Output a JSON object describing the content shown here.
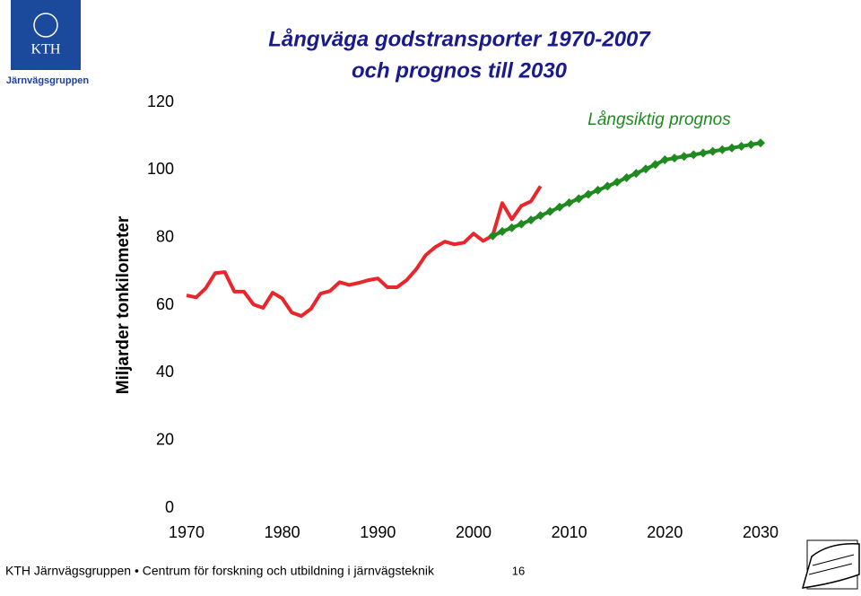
{
  "header": {
    "logo": "KTH",
    "org": "Järnvägsgruppen"
  },
  "chart_data": {
    "type": "line",
    "title_lines": [
      "Långväga godstransporter  1970-2007",
      "och prognos till 2030"
    ],
    "y_label": "Miljarder tonkilometer",
    "annotation": "Långsiktig prognos",
    "xlim": [
      1970,
      2030
    ],
    "xticks": [
      1970,
      1980,
      1990,
      2000,
      2010,
      2020,
      2030
    ],
    "ylim": [
      0,
      120
    ],
    "yticks": [
      0,
      20,
      40,
      60,
      80,
      100,
      120
    ],
    "grid": false,
    "series": [
      {
        "color": "#e8262b",
        "marker": "none",
        "x": [
          1970,
          1971,
          1972,
          1973,
          1974,
          1975,
          1976,
          1977,
          1978,
          1979,
          1980,
          1981,
          1982,
          1983,
          1984,
          1985,
          1986,
          1987,
          1988,
          1989,
          1990,
          1991,
          1992,
          1993,
          1994,
          1995,
          1996,
          1997,
          1998,
          1999,
          2000,
          2001,
          2002,
          2003,
          2004,
          2005,
          2006,
          2007
        ],
        "values": [
          62.9,
          62.3,
          65,
          69.5,
          69.8,
          64,
          64,
          60.2,
          59.2,
          63.7,
          62,
          57.8,
          56.8,
          58.9,
          63.4,
          64.2,
          66.8,
          66,
          66.6,
          67.4,
          67.9,
          65.3,
          65.3,
          67.4,
          70.6,
          74.8,
          77.2,
          78.8,
          78,
          78.5,
          81.2,
          79,
          80.6,
          90.2,
          85.4,
          89.4,
          90.7,
          95.2
        ]
      },
      {
        "color": "#1f8a1f",
        "marker": "diamond",
        "x": [
          2002,
          2003,
          2004,
          2005,
          2006,
          2007,
          2008,
          2009,
          2010,
          2011,
          2012,
          2013,
          2014,
          2015,
          2016,
          2017,
          2018,
          2019,
          2020,
          2021,
          2022,
          2023,
          2024,
          2025,
          2026,
          2027,
          2028,
          2029,
          2030
        ],
        "values": [
          80.5,
          81.8,
          82.9,
          84,
          85.2,
          86.5,
          87.7,
          89,
          90.3,
          91.5,
          92.8,
          94,
          95.2,
          96.4,
          97.7,
          99,
          100.3,
          101.6,
          103,
          103.5,
          104,
          104.5,
          105,
          105.5,
          106,
          106.5,
          107,
          107.5,
          108
        ]
      }
    ]
  },
  "footer": {
    "text": "KTH Järnvägsgruppen • Centrum för forskning och utbildning i järnvägsteknik",
    "page": 16
  }
}
